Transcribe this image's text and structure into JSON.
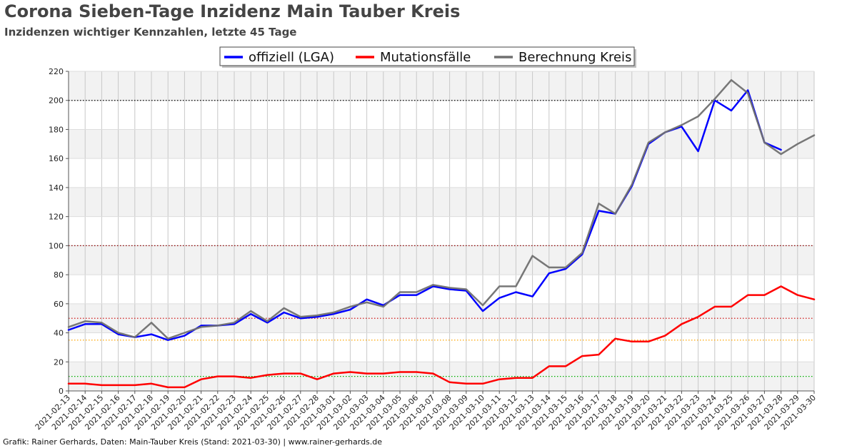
{
  "title": "Corona Sieben-Tage Inzidenz Main Tauber Kreis",
  "subtitle": "Inzidenzen wichtiger Kennzahlen, letzte 45 Tage",
  "credit": "Grafik: Rainer Gerhards, Daten: Main-Tauber Kreis (Stand: 2021-03-30) | www.rainer-gerhards.de",
  "chart_data": {
    "type": "line",
    "title": "Corona Sieben-Tage Inzidenz Main Tauber Kreis",
    "subtitle": "Inzidenzen wichtiger Kennzahlen, letzte 45 Tage",
    "xlabel": "",
    "ylabel": "",
    "ylim": [
      0,
      220
    ],
    "yticks": [
      0,
      20,
      40,
      60,
      80,
      100,
      120,
      140,
      160,
      180,
      200,
      220
    ],
    "grid": true,
    "legend_position": "top-center",
    "x": [
      "2021-02-13",
      "2021-02-14",
      "2021-02-15",
      "2021-02-16",
      "2021-02-17",
      "2021-02-18",
      "2021-02-19",
      "2021-02-20",
      "2021-02-21",
      "2021-02-22",
      "2021-02-23",
      "2021-02-24",
      "2021-02-25",
      "2021-02-26",
      "2021-02-27",
      "2021-02-28",
      "2021-03-01",
      "2021-03-02",
      "2021-03-03",
      "2021-03-04",
      "2021-03-05",
      "2021-03-06",
      "2021-03-07",
      "2021-03-08",
      "2021-03-09",
      "2021-03-10",
      "2021-03-11",
      "2021-03-12",
      "2021-03-13",
      "2021-03-14",
      "2021-03-15",
      "2021-03-16",
      "2021-03-17",
      "2021-03-18",
      "2021-03-19",
      "2021-03-20",
      "2021-03-21",
      "2021-03-22",
      "2021-03-23",
      "2021-03-24",
      "2021-03-25",
      "2021-03-26",
      "2021-03-27",
      "2021-03-28",
      "2021-03-29",
      "2021-03-30"
    ],
    "series": [
      {
        "name": "offiziell (LGA)",
        "color": "#0000ff",
        "values": [
          42,
          46,
          46,
          39,
          37,
          39,
          35,
          38,
          45,
          45,
          46,
          53,
          47,
          54,
          50,
          51,
          53,
          56,
          63,
          59,
          66,
          66,
          72,
          70,
          69,
          55,
          64,
          68,
          65,
          81,
          84,
          94,
          124,
          122,
          141,
          170,
          178,
          182,
          165,
          200,
          193,
          207,
          171,
          166,
          null,
          null
        ]
      },
      {
        "name": "Mutationsfälle",
        "color": "#ff0000",
        "values": [
          5,
          5,
          4,
          4,
          4,
          5,
          2.5,
          2.5,
          8,
          10,
          10,
          9,
          11,
          12,
          12,
          8,
          12,
          13,
          12,
          12,
          13,
          13,
          12,
          6,
          5,
          5,
          8,
          9,
          9,
          17,
          17,
          24,
          25,
          36,
          34,
          34,
          38,
          46,
          51,
          58,
          58,
          66,
          66,
          72,
          66,
          63
        ]
      },
      {
        "name": "Berechnung Kreis",
        "color": "#707070",
        "values": [
          44,
          48,
          47,
          40,
          37,
          47,
          36,
          40,
          44,
          45,
          47,
          55,
          48,
          57,
          51,
          52,
          54,
          58,
          61,
          58,
          68,
          68,
          73,
          71,
          70,
          59,
          72,
          72,
          93,
          85,
          85,
          95,
          129,
          122,
          142,
          171,
          178,
          183,
          189,
          201,
          214,
          205,
          171,
          163,
          170,
          176
        ]
      }
    ],
    "reference_lines": [
      {
        "value": 200,
        "color": "#000000"
      },
      {
        "value": 100,
        "color": "#8b0000"
      },
      {
        "value": 50,
        "color": "#cc0000"
      },
      {
        "value": 35,
        "color": "#ffa500"
      },
      {
        "value": 10,
        "color": "#00b000"
      }
    ],
    "band_color": "#f2f2f2"
  }
}
